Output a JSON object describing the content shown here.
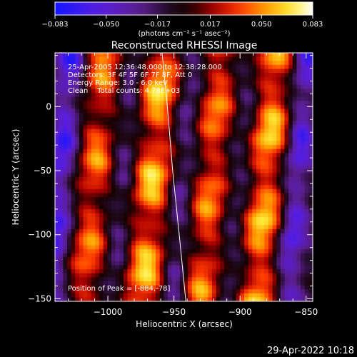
{
  "chart_data": {
    "type": "heatmap",
    "title": "Reconstructed RHESSI Image",
    "xlabel": "Heliocentric X (arcsec)",
    "ylabel": "Heliocentric Y (arcsec)",
    "xlim": [
      -1040,
      -845
    ],
    "ylim": [
      -152,
      42
    ],
    "x_ticks": [
      -1000,
      -950,
      -900,
      -850
    ],
    "x_tick_labels": [
      "−1000",
      "−950",
      "−900",
      "−850"
    ],
    "y_ticks": [
      0,
      -50,
      -100,
      -150
    ],
    "y_tick_labels": [
      "0",
      "−50",
      "−100",
      "−150"
    ],
    "colorbar": {
      "min": -0.083,
      "max": 0.083,
      "tick_values": [
        -0.083,
        -0.05,
        -0.017,
        0.017,
        0.05,
        0.083
      ],
      "tick_labels": [
        "−0.083",
        "−0.050",
        "−0.017",
        "0.017",
        "0.050",
        "0.083"
      ],
      "label": "(photons cm⁻² s⁻¹ asec⁻²)",
      "colormap": "blue-purple-black-red-yellow-white"
    },
    "annotations": [
      "25-Apr-2005 12:36:48.000 to 12:38:28.000",
      "Detectors: 3F 4F 5F 6F 7F 8F, Att 0",
      "Energy Range: 3.0 - 6.0 keV",
      "Clean    Total counts: 4.78E+03"
    ],
    "peak_label": "Position of Peak = [-884,-78]",
    "peak": {
      "x": -884,
      "y": -78
    },
    "limb_curve": [
      [
        -959,
        42
      ],
      [
        -955,
        0
      ],
      [
        -951,
        -50
      ],
      [
        -946,
        -100
      ],
      [
        -941,
        -152
      ]
    ],
    "emission_ridges": [
      {
        "x_center": -1010,
        "x_slope": 0.08,
        "width": 12,
        "peak": 0.062
      },
      {
        "x_center": -966,
        "x_slope": 0.08,
        "width": 14,
        "peak": 0.08
      },
      {
        "x_center": -922,
        "x_slope": 0.08,
        "width": 12,
        "peak": 0.064
      },
      {
        "x_center": -880,
        "x_slope": 0.08,
        "width": 14,
        "peak": 0.083
      }
    ],
    "troughs": [
      {
        "x_center": -1035,
        "x_slope": 0.08,
        "width": 8,
        "peak": -0.065
      },
      {
        "x_center": -988,
        "x_slope": 0.08,
        "width": 8,
        "peak": -0.045
      },
      {
        "x_center": -944,
        "x_slope": 0.08,
        "width": 8,
        "peak": -0.05
      },
      {
        "x_center": -900,
        "x_slope": 0.08,
        "width": 8,
        "peak": -0.045
      },
      {
        "x_center": -858,
        "x_slope": 0.08,
        "width": 8,
        "peak": -0.07
      }
    ]
  },
  "timestamp": "29-Apr-2022 10:18"
}
